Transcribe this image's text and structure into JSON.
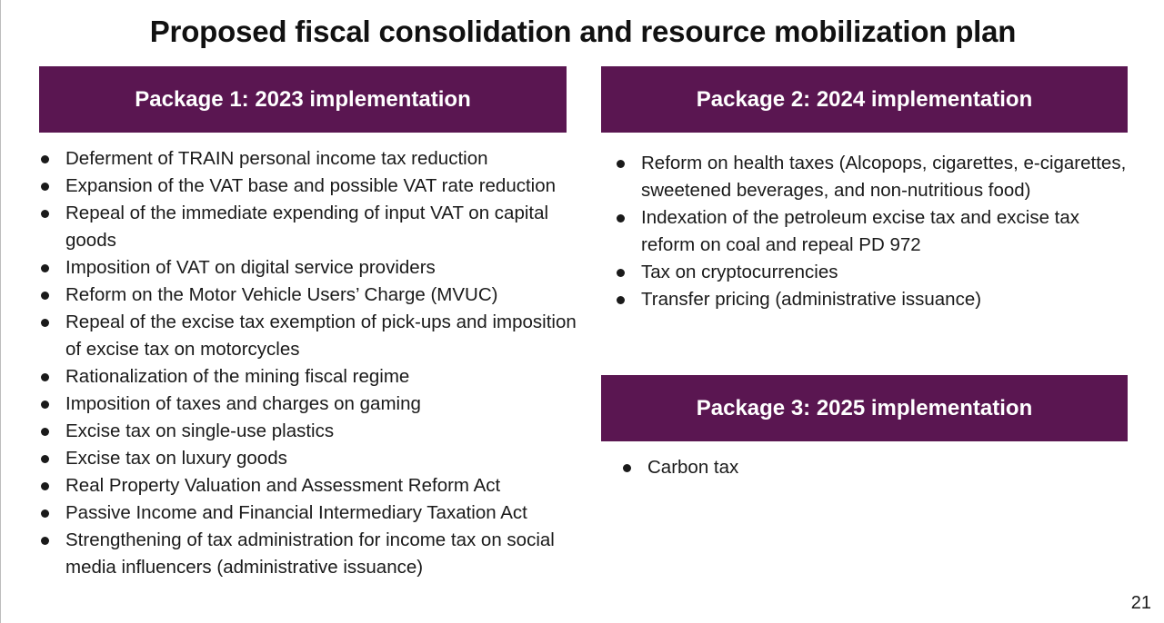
{
  "slide": {
    "title": "Proposed fiscal consolidation and resource mobilization plan",
    "page_number": "21"
  },
  "package1": {
    "header": "Package 1: 2023 implementation",
    "items": [
      "Deferment of TRAIN personal income tax reduction",
      "Expansion of the VAT base and possible VAT rate reduction",
      "Repeal of the immediate expending of input VAT on capital goods",
      "Imposition of VAT on digital service providers",
      "Reform on the Motor Vehicle Users’ Charge (MVUC)",
      "Repeal of the excise tax exemption of pick-ups and imposition of excise tax on motorcycles",
      "Rationalization of the mining fiscal regime",
      "Imposition of taxes and charges on gaming",
      "Excise tax on single-use plastics",
      "Excise tax on luxury goods",
      "Real Property Valuation and Assessment Reform Act",
      "Passive Income and Financial Intermediary Taxation Act",
      "Strengthening of tax administration for income tax on social media influencers (administrative issuance)"
    ]
  },
  "package2": {
    "header": "Package 2: 2024 implementation",
    "items": [
      "Reform on health taxes (Alcopops, cigarettes, e-cigarettes, sweetened beverages, and non-nutritious food)",
      "Indexation of the petroleum excise tax and excise tax reform on coal and repeal PD 972",
      "Tax on cryptocurrencies",
      "Transfer pricing (administrative issuance)"
    ]
  },
  "package3": {
    "header": "Package 3: 2025 implementation",
    "items": [
      "Carbon tax"
    ]
  },
  "colors": {
    "header_background": "#5a1651",
    "header_text": "#ffffff"
  }
}
